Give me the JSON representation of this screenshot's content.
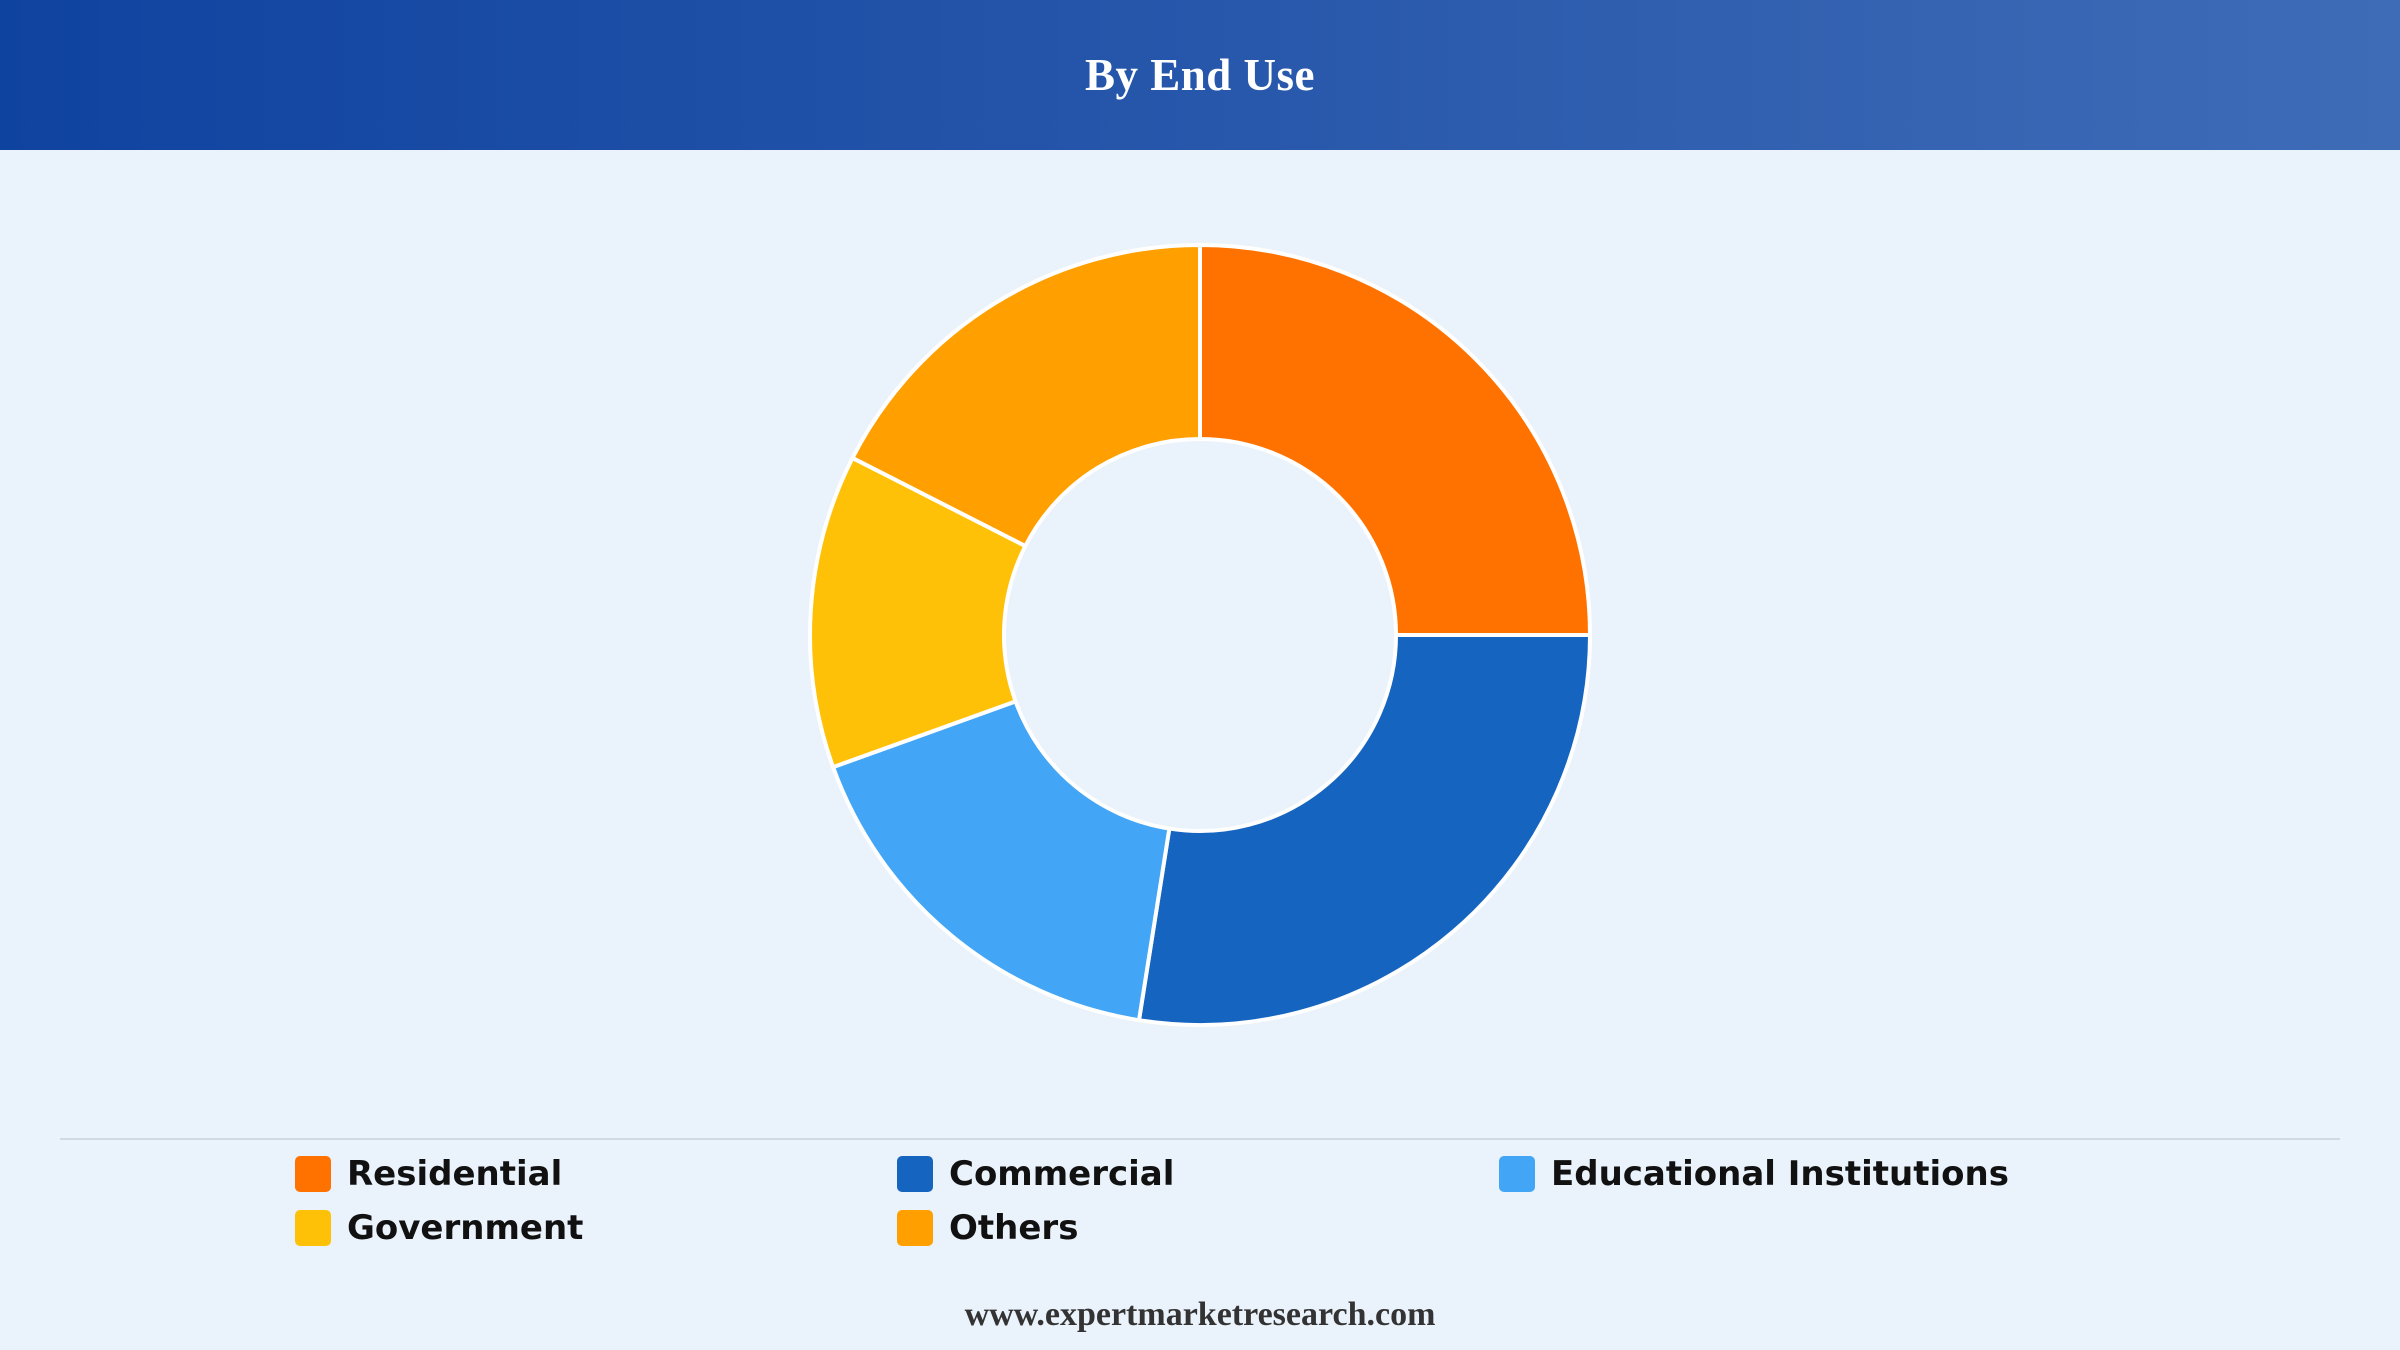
{
  "header": {
    "title": "By End Use"
  },
  "chart_data": {
    "type": "pie",
    "style": "donut",
    "title": "By End Use",
    "categories": [
      "Residential",
      "Commercial",
      "Educational Institutions",
      "Government",
      "Others"
    ],
    "values": [
      25,
      27.5,
      17,
      13,
      17.5
    ],
    "colors": [
      "#ff7200",
      "#1565c0",
      "#42a5f5",
      "#ffc107",
      "#ffa000"
    ],
    "legend_position": "bottom"
  },
  "legend": {
    "items": [
      {
        "label": "Residential",
        "color": "#ff7200"
      },
      {
        "label": "Commercial",
        "color": "#1565c0"
      },
      {
        "label": "Educational Institutions",
        "color": "#42a5f5"
      },
      {
        "label": "Government",
        "color": "#ffc107"
      },
      {
        "label": "Others",
        "color": "#ffa000"
      }
    ]
  },
  "footer": {
    "source": "www.expertmarketresearch.com"
  }
}
